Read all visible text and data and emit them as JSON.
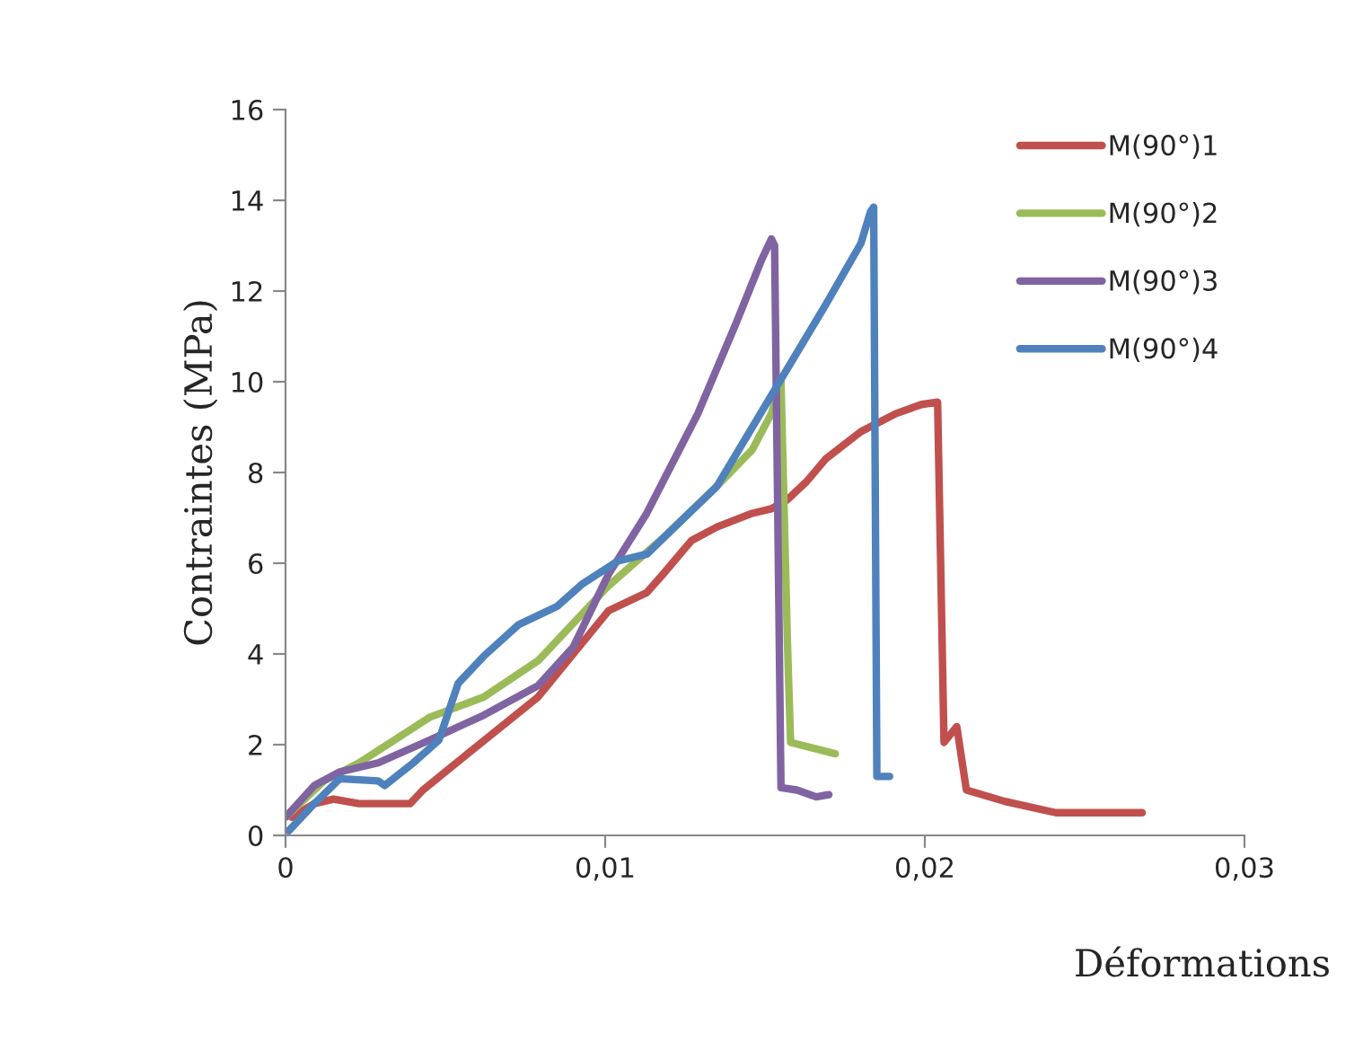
{
  "chart_data": {
    "type": "line",
    "xlabel": "Déformations",
    "ylabel": "Contraintes (MPa)",
    "xlim": [
      0,
      0.03
    ],
    "ylim": [
      0,
      16
    ],
    "xticks": [
      0,
      {
        "value": 0.01,
        "label": "0,01"
      },
      {
        "value": 0.02,
        "label": "0,02"
      },
      {
        "value": 0.03,
        "label": "0,03"
      }
    ],
    "yticks": [
      0,
      2,
      4,
      6,
      8,
      10,
      12,
      14,
      16
    ],
    "grid": false,
    "legend": "top right",
    "marker": "none",
    "line_style": "solid",
    "series": [
      {
        "name": "M(90°)1",
        "color": "#c0504d",
        "x": [
          0.0002,
          0.0009,
          0.0015,
          0.0023,
          0.0039,
          0.0043,
          0.0057,
          0.0079,
          0.0101,
          0.0113,
          0.0118,
          0.0127,
          0.0135,
          0.0146,
          0.0152,
          0.0157,
          0.0163,
          0.0169,
          0.018,
          0.0191,
          0.0199,
          0.0204,
          0.0206,
          0.021,
          0.0213,
          0.0225,
          0.0241,
          0.0268
        ],
        "values": [
          0.4,
          0.7,
          0.8,
          0.7,
          0.7,
          1.0,
          1.8,
          3.05,
          4.95,
          5.35,
          5.75,
          6.5,
          6.8,
          7.1,
          7.2,
          7.4,
          7.8,
          8.3,
          8.9,
          9.3,
          9.5,
          9.55,
          2.05,
          2.4,
          1.0,
          0.75,
          0.5,
          0.5
        ]
      },
      {
        "name": "M(90°)2",
        "color": "#9bbb59",
        "x": [
          0,
          0.0012,
          0.0023,
          0.0045,
          0.0062,
          0.0079,
          0.0101,
          0.0118,
          0.0135,
          0.0146,
          0.0152,
          0.0155,
          0.0157,
          0.0158,
          0.0172
        ],
        "values": [
          0.4,
          1.2,
          1.6,
          2.6,
          3.05,
          3.85,
          5.5,
          6.55,
          7.7,
          8.5,
          9.3,
          10.0,
          4.3,
          2.05,
          1.8
        ]
      },
      {
        "name": "M(90°)3",
        "color": "#8064a2",
        "x": [
          0,
          0.0009,
          0.0017,
          0.0029,
          0.0045,
          0.0062,
          0.0079,
          0.009,
          0.0101,
          0.0113,
          0.0129,
          0.0141,
          0.0149,
          0.0152,
          0.0153,
          0.0155,
          0.016,
          0.0166,
          0.017
        ],
        "values": [
          0.4,
          1.1,
          1.4,
          1.6,
          2.1,
          2.65,
          3.3,
          4.15,
          5.75,
          7.1,
          9.3,
          11.3,
          12.7,
          13.15,
          13.0,
          1.05,
          1.0,
          0.85,
          0.9
        ]
      },
      {
        "name": "M(90°)4",
        "color": "#4f81bd",
        "x": [
          0.0001,
          0.0009,
          0.0017,
          0.0029,
          0.0031,
          0.004,
          0.0048,
          0.0054,
          0.0062,
          0.0073,
          0.0085,
          0.0093,
          0.0104,
          0.0113,
          0.0124,
          0.0135,
          0.0152,
          0.0169,
          0.018,
          0.0183,
          0.0184,
          0.0185,
          0.0189
        ],
        "values": [
          0.1,
          0.7,
          1.25,
          1.2,
          1.1,
          1.6,
          2.1,
          3.35,
          3.95,
          4.65,
          5.05,
          5.55,
          6.05,
          6.2,
          6.95,
          7.7,
          9.7,
          11.7,
          13.05,
          13.75,
          13.85,
          1.3,
          1.3
        ]
      }
    ]
  }
}
